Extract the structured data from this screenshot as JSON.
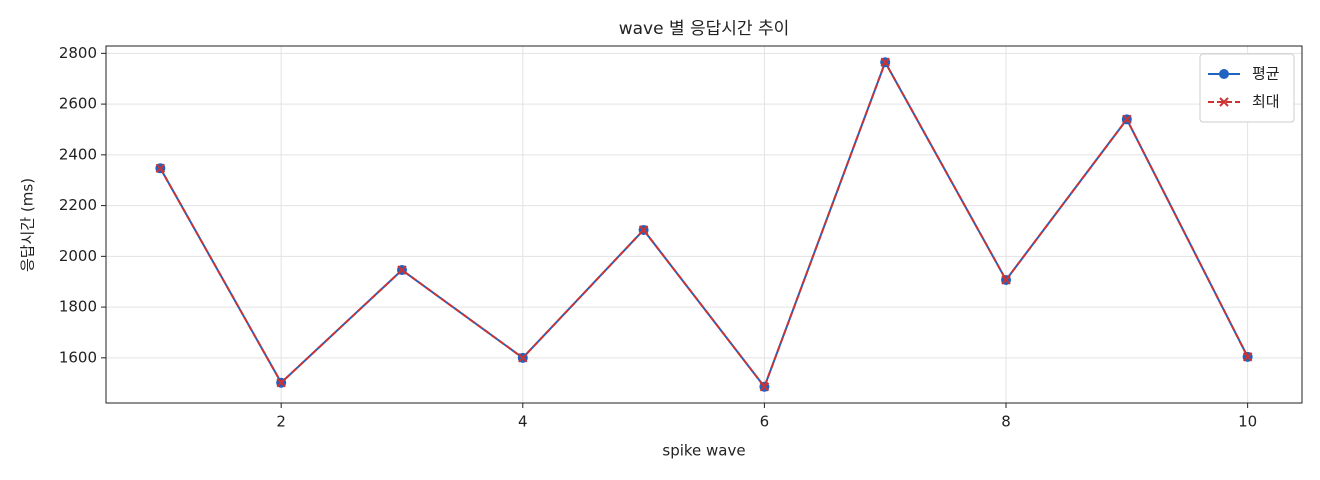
{
  "chart_data": {
    "type": "line",
    "title": "wave 별 응답시간 추이",
    "x_label": "spike wave",
    "y_label": "응답시간 (ms)",
    "x": [
      1,
      2,
      3,
      4,
      5,
      6,
      7,
      8,
      9,
      10
    ],
    "series": [
      {
        "name": "평균",
        "color": "#1f62c0",
        "values": [
          2347,
          1502,
          1946,
          1600,
          2104,
          1486,
          2765,
          1907,
          2540,
          1604
        ]
      },
      {
        "name": "최대",
        "color": "#cc3333",
        "values": [
          2347,
          1502,
          1946,
          1600,
          2104,
          1486,
          2765,
          1907,
          2540,
          1604
        ]
      }
    ],
    "xlim": [
      0.55,
      10.45
    ],
    "ylim": [
      1422,
      2829
    ],
    "xticks": [
      2,
      4,
      6,
      8,
      10
    ],
    "yticks": [
      1600,
      1800,
      2000,
      2200,
      2400,
      2600,
      2800
    ],
    "grid": true,
    "legend": "upper right"
  }
}
